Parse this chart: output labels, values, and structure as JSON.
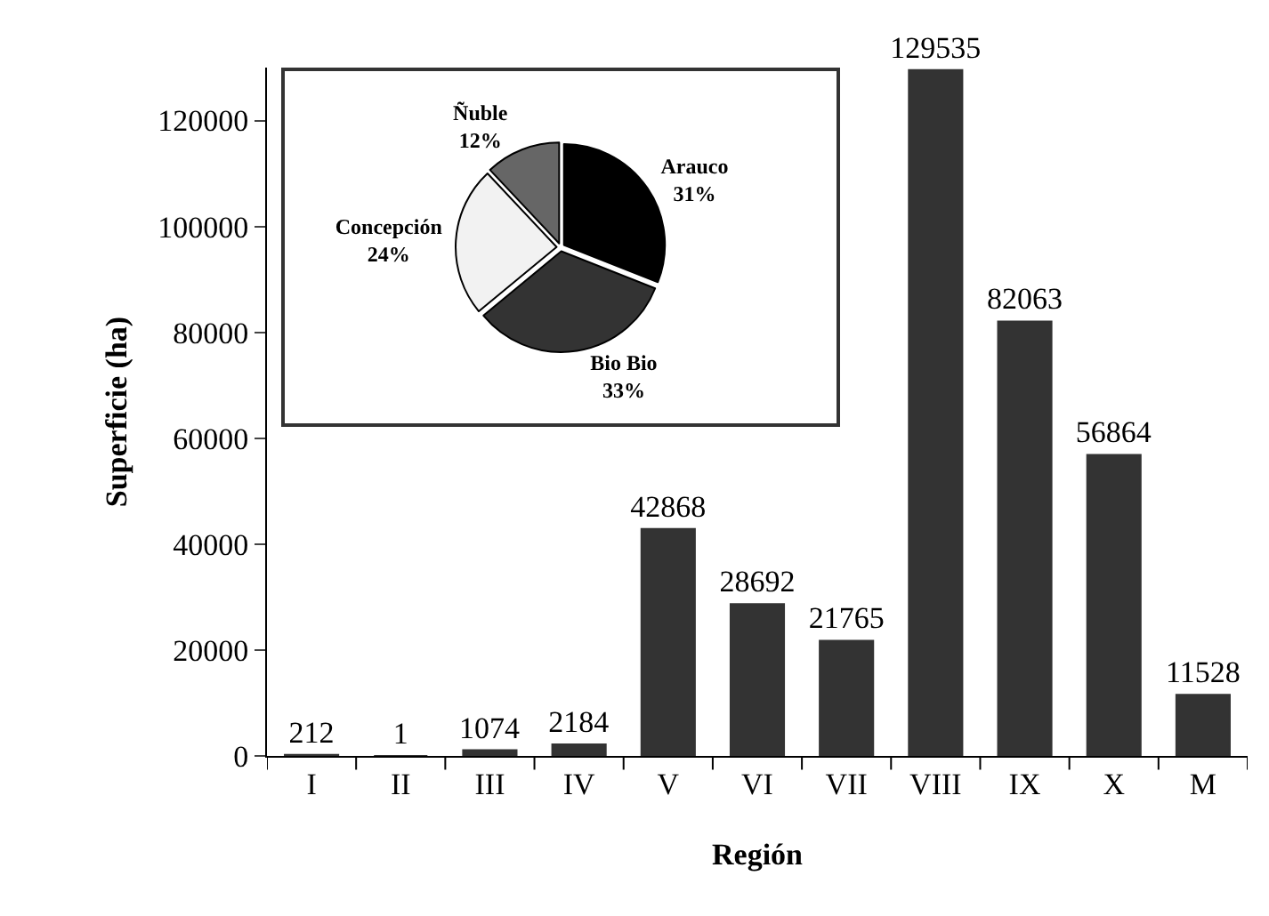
{
  "chart_data": [
    {
      "type": "bar",
      "xlabel": "Región",
      "ylabel": "Superficie (ha)",
      "categories": [
        "I",
        "II",
        "III",
        "IV",
        "V",
        "VI",
        "VII",
        "VIII",
        "IX",
        "X",
        "M"
      ],
      "values": [
        212,
        1,
        1074,
        2184,
        42868,
        28692,
        21765,
        129535,
        82063,
        56864,
        11528
      ],
      "color": "#333333",
      "data_labels": true,
      "ylim": [
        0,
        130000
      ],
      "yticks": [
        0,
        20000,
        40000,
        60000,
        80000,
        100000,
        120000
      ],
      "grid": false,
      "legend": false
    },
    {
      "type": "pie",
      "categories": [
        "Arauco",
        "Bio Bio",
        "Concepción",
        "Ñuble"
      ],
      "values": [
        31,
        33,
        24,
        12
      ],
      "colors": [
        "#000000",
        "#333333",
        "#f2f2f2",
        "#666666"
      ],
      "value_labels": [
        "31%",
        "33%",
        "24%",
        "12%"
      ],
      "legend": false
    }
  ]
}
